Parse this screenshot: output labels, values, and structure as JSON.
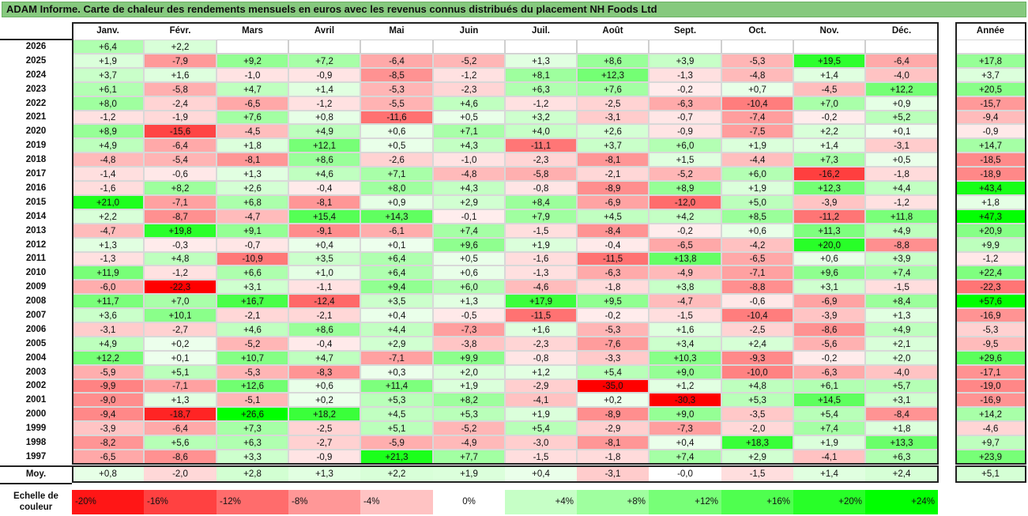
{
  "chart_data": {
    "type": "heatmap",
    "title": "ADAM Informe. Carte de chaleur des rendements mensuels en euros avec les revenus connus distribués du placement NH Foods Ltd",
    "columns": [
      "Janv.",
      "Févr.",
      "Mars",
      "Avril",
      "Mai",
      "Juin",
      "Juil.",
      "Août",
      "Sept.",
      "Oct.",
      "Nov.",
      "Déc."
    ],
    "year_header": "Année",
    "rows": [
      {
        "year": "2026",
        "values": [
          "+6,4",
          "+2,2",
          "",
          "",
          "",
          "",
          "",
          "",
          "",
          "",
          "",
          ""
        ],
        "annual": ""
      },
      {
        "year": "2025",
        "values": [
          "+1,9",
          "-7,9",
          "+9,2",
          "+7,2",
          "-6,4",
          "-5,2",
          "+1,3",
          "+8,6",
          "+3,9",
          "-5,3",
          "+19,5",
          "-6,4"
        ],
        "annual": "+17,8"
      },
      {
        "year": "2024",
        "values": [
          "+3,7",
          "+1,6",
          "-1,0",
          "-0,9",
          "-8,5",
          "-1,2",
          "+8,1",
          "+12,3",
          "-1,3",
          "-4,8",
          "+1,4",
          "-4,0"
        ],
        "annual": "+3,7"
      },
      {
        "year": "2023",
        "values": [
          "+6,1",
          "-5,8",
          "+4,7",
          "+1,4",
          "-5,3",
          "-2,3",
          "+6,3",
          "+7,6",
          "-0,2",
          "+0,7",
          "-4,5",
          "+12,2"
        ],
        "annual": "+20,5"
      },
      {
        "year": "2022",
        "values": [
          "+8,0",
          "-2,4",
          "-6,5",
          "-1,2",
          "-5,5",
          "+4,6",
          "-1,2",
          "-2,5",
          "-6,3",
          "-10,4",
          "+7,0",
          "+0,9"
        ],
        "annual": "-15,7"
      },
      {
        "year": "2021",
        "values": [
          "-1,2",
          "-1,9",
          "+7,6",
          "+0,8",
          "-11,6",
          "+0,5",
          "+3,2",
          "-3,1",
          "-0,7",
          "-7,4",
          "-0,2",
          "+5,2"
        ],
        "annual": "-9,4"
      },
      {
        "year": "2020",
        "values": [
          "+8,9",
          "-15,6",
          "-4,5",
          "+4,9",
          "+0,6",
          "+7,1",
          "+4,0",
          "+2,6",
          "-0,9",
          "-7,5",
          "+2,2",
          "+0,1"
        ],
        "annual": "-0,9"
      },
      {
        "year": "2019",
        "values": [
          "+4,9",
          "-6,4",
          "+1,8",
          "+12,1",
          "+0,5",
          "+4,3",
          "-11,1",
          "+3,7",
          "+6,0",
          "+1,9",
          "+1,4",
          "-3,1"
        ],
        "annual": "+14,7"
      },
      {
        "year": "2018",
        "values": [
          "-4,8",
          "-5,4",
          "-8,1",
          "+8,6",
          "-2,6",
          "-1,0",
          "-2,3",
          "-8,1",
          "+1,5",
          "-4,4",
          "+7,3",
          "+0,5"
        ],
        "annual": "-18,5"
      },
      {
        "year": "2017",
        "values": [
          "-1,4",
          "-0,6",
          "+1,3",
          "+4,6",
          "+7,1",
          "-4,8",
          "-5,8",
          "-2,1",
          "-5,2",
          "+6,0",
          "-16,2",
          "-1,8"
        ],
        "annual": "-18,9"
      },
      {
        "year": "2016",
        "values": [
          "-1,6",
          "+8,2",
          "+2,6",
          "-0,4",
          "+8,0",
          "+4,3",
          "-0,8",
          "-8,9",
          "+8,9",
          "+1,9",
          "+12,3",
          "+4,4"
        ],
        "annual": "+43,4"
      },
      {
        "year": "2015",
        "values": [
          "+21,0",
          "-7,1",
          "+6,8",
          "-8,1",
          "+0,9",
          "+2,9",
          "+8,4",
          "-6,9",
          "-12,0",
          "+5,0",
          "-3,9",
          "-1,2"
        ],
        "annual": "+1,8"
      },
      {
        "year": "2014",
        "values": [
          "+2,2",
          "-8,7",
          "-4,7",
          "+15,4",
          "+14,3",
          "-0,1",
          "+7,9",
          "+4,5",
          "+4,2",
          "+8,5",
          "-11,2",
          "+11,8"
        ],
        "annual": "+47,3"
      },
      {
        "year": "2013",
        "values": [
          "-4,7",
          "+19,8",
          "+9,1",
          "-9,1",
          "-6,1",
          "+7,4",
          "-1,5",
          "-8,4",
          "-0,2",
          "+0,6",
          "+11,3",
          "+4,9"
        ],
        "annual": "+20,9"
      },
      {
        "year": "2012",
        "values": [
          "+1,3",
          "-0,3",
          "-0,7",
          "+0,4",
          "+0,1",
          "+9,6",
          "+1,9",
          "-0,4",
          "-6,5",
          "-4,2",
          "+20,0",
          "-8,8"
        ],
        "annual": "+9,9"
      },
      {
        "year": "2011",
        "values": [
          "-1,3",
          "+4,8",
          "-10,9",
          "+3,5",
          "+6,4",
          "+0,5",
          "-1,6",
          "-11,5",
          "+13,8",
          "-6,5",
          "+0,6",
          "+3,9"
        ],
        "annual": "-1,2"
      },
      {
        "year": "2010",
        "values": [
          "+11,9",
          "-1,2",
          "+6,6",
          "+1,0",
          "+6,4",
          "+0,6",
          "-1,3",
          "-6,3",
          "-4,9",
          "-7,1",
          "+9,6",
          "+7,4"
        ],
        "annual": "+22,4"
      },
      {
        "year": "2009",
        "values": [
          "-6,0",
          "-22,3",
          "+3,1",
          "-1,1",
          "+9,4",
          "+6,0",
          "-4,6",
          "-1,8",
          "+3,8",
          "-8,8",
          "+3,1",
          "-1,5"
        ],
        "annual": "-22,3"
      },
      {
        "year": "2008",
        "values": [
          "+11,7",
          "+7,0",
          "+16,7",
          "-12,4",
          "+3,5",
          "+1,3",
          "+17,9",
          "+9,5",
          "-4,7",
          "-0,6",
          "-6,9",
          "+8,4"
        ],
        "annual": "+57,6"
      },
      {
        "year": "2007",
        "values": [
          "+3,6",
          "+10,1",
          "-2,1",
          "-2,1",
          "+0,4",
          "-0,5",
          "-11,5",
          "-0,2",
          "-1,5",
          "-10,4",
          "-3,9",
          "+1,3"
        ],
        "annual": "-16,9"
      },
      {
        "year": "2006",
        "values": [
          "-3,1",
          "-2,7",
          "+4,6",
          "+8,6",
          "+4,4",
          "-7,3",
          "+1,6",
          "-5,3",
          "+1,6",
          "-2,5",
          "-8,6",
          "+4,9"
        ],
        "annual": "-5,3"
      },
      {
        "year": "2005",
        "values": [
          "+4,9",
          "+0,2",
          "-5,2",
          "-0,4",
          "+2,9",
          "-3,8",
          "-2,3",
          "-7,6",
          "+3,4",
          "+2,4",
          "-5,6",
          "+2,1"
        ],
        "annual": "-9,5"
      },
      {
        "year": "2004",
        "values": [
          "+12,2",
          "+0,1",
          "+10,7",
          "+4,7",
          "-7,1",
          "+9,9",
          "-0,8",
          "-3,3",
          "+10,3",
          "-9,3",
          "-0,2",
          "+2,0"
        ],
        "annual": "+29,6"
      },
      {
        "year": "2003",
        "values": [
          "-5,9",
          "+5,1",
          "-5,3",
          "-8,3",
          "+0,3",
          "+2,0",
          "+1,2",
          "+5,4",
          "+9,0",
          "-10,0",
          "-6,3",
          "-4,0"
        ],
        "annual": "-17,1"
      },
      {
        "year": "2002",
        "values": [
          "-9,9",
          "-7,1",
          "+12,6",
          "+0,6",
          "+11,4",
          "+1,9",
          "-2,9",
          "-35,0",
          "+1,2",
          "+4,8",
          "+6,1",
          "+5,7"
        ],
        "annual": "-19,0"
      },
      {
        "year": "2001",
        "values": [
          "-9,0",
          "+1,3",
          "-5,1",
          "+0,2",
          "+5,3",
          "+8,2",
          "-4,1",
          "+0,2",
          "-30,3",
          "+5,3",
          "+14,5",
          "+3,1"
        ],
        "annual": "-16,9"
      },
      {
        "year": "2000",
        "values": [
          "-9,4",
          "-18,7",
          "+26,6",
          "+18,2",
          "+4,5",
          "+5,3",
          "+1,9",
          "-8,9",
          "+9,0",
          "-3,5",
          "+5,4",
          "-8,4"
        ],
        "annual": "+14,2"
      },
      {
        "year": "1999",
        "values": [
          "-3,9",
          "-6,4",
          "+7,3",
          "-2,5",
          "+5,1",
          "-5,2",
          "+5,4",
          "-2,9",
          "-7,3",
          "-2,0",
          "+7,4",
          "+1,8"
        ],
        "annual": "-4,6"
      },
      {
        "year": "1998",
        "values": [
          "-8,2",
          "+5,6",
          "+6,3",
          "-2,7",
          "-5,9",
          "-4,9",
          "-3,0",
          "-8,1",
          "+0,4",
          "+18,3",
          "+1,9",
          "+13,3"
        ],
        "annual": "+9,7"
      },
      {
        "year": "1997",
        "values": [
          "-6,5",
          "-8,6",
          "+3,3",
          "-0,9",
          "+21,3",
          "+7,7",
          "-1,5",
          "-1,8",
          "+7,4",
          "+2,9",
          "-4,1",
          "+6,3"
        ],
        "annual": "+23,9"
      }
    ],
    "average": {
      "label": "Moy.",
      "values": [
        "+0,8",
        "-2,0",
        "+2,8",
        "+1,3",
        "+2,2",
        "+1,9",
        "+0,4",
        "-3,1",
        "-0,0",
        "-1,5",
        "+1,4",
        "+2,4"
      ],
      "annual": "+5,1"
    },
    "legend": {
      "label": "Echelle de couleur",
      "items": [
        {
          "text": "-20%",
          "value": -20
        },
        {
          "text": "-16%",
          "value": -16
        },
        {
          "text": "-12%",
          "value": -12
        },
        {
          "text": "-8%",
          "value": -8
        },
        {
          "text": "-4%",
          "value": -4
        },
        {
          "text": "0%",
          "value": 0
        },
        {
          "text": "+4%",
          "value": 4
        },
        {
          "text": "+8%",
          "value": 8
        },
        {
          "text": "+12%",
          "value": 12
        },
        {
          "text": "+16%",
          "value": 16
        },
        {
          "text": "+20%",
          "value": 20
        },
        {
          "text": "+24%",
          "value": 24
        }
      ]
    },
    "colors": {
      "positive_max": "#00ff00",
      "negative_max": "#ff0000",
      "neutral": "#ffffff",
      "title_bg": "#86c97e"
    }
  }
}
